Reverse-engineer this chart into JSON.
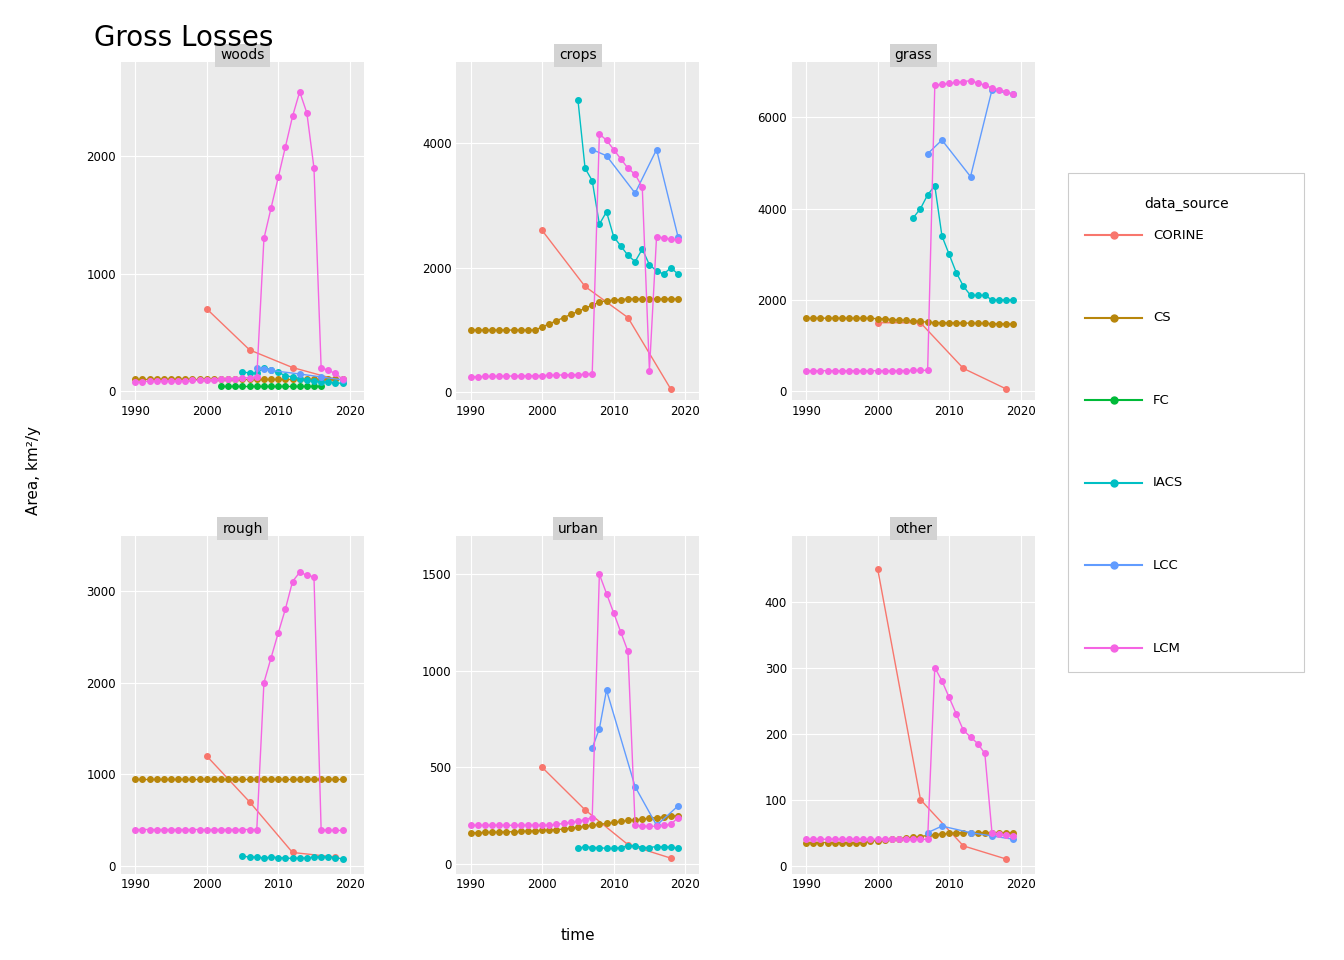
{
  "title": "Gross Losses",
  "xlabel": "time",
  "ylabel": "Area, km²/y",
  "panels": [
    "woods",
    "crops",
    "grass",
    "rough",
    "urban",
    "other"
  ],
  "sources": [
    "CORINE",
    "CS",
    "FC",
    "IACS",
    "LCC",
    "LCM"
  ],
  "colors": {
    "CORINE": "#F8766D",
    "CS": "#B8860B",
    "FC": "#00BA38",
    "IACS": "#00BFC4",
    "LCC": "#619CFF",
    "LCM": "#F564E3"
  },
  "data": {
    "woods": {
      "CORINE": {
        "x": [
          2000,
          2006,
          2012,
          2018
        ],
        "y": [
          700,
          350,
          200,
          100
        ]
      },
      "CS": {
        "x": [
          1990,
          1991,
          1992,
          1993,
          1994,
          1995,
          1996,
          1997,
          1998,
          1999,
          2000,
          2001,
          2002,
          2003,
          2004,
          2005,
          2006,
          2007,
          2008,
          2009,
          2010,
          2011,
          2012,
          2013,
          2014,
          2015,
          2016,
          2017,
          2018,
          2019
        ],
        "y": [
          100,
          100,
          100,
          100,
          100,
          100,
          100,
          100,
          100,
          100,
          100,
          100,
          100,
          100,
          100,
          100,
          100,
          100,
          100,
          100,
          100,
          100,
          100,
          100,
          100,
          100,
          100,
          100,
          100,
          100
        ]
      },
      "FC": {
        "x": [
          2002,
          2003,
          2004,
          2005,
          2006,
          2007,
          2008,
          2009,
          2010,
          2011,
          2012,
          2013,
          2014,
          2015,
          2016
        ],
        "y": [
          40,
          40,
          40,
          40,
          40,
          40,
          40,
          40,
          40,
          40,
          40,
          40,
          40,
          40,
          40
        ]
      },
      "IACS": {
        "x": [
          2005,
          2006,
          2007,
          2008,
          2009,
          2010,
          2011,
          2012,
          2013,
          2014,
          2015,
          2016,
          2017,
          2018,
          2019
        ],
        "y": [
          160,
          155,
          150,
          200,
          180,
          160,
          130,
          120,
          105,
          95,
          85,
          80,
          75,
          70,
          65
        ]
      },
      "LCC": {
        "x": [
          2007,
          2008,
          2009,
          2013,
          2016,
          2019
        ],
        "y": [
          200,
          190,
          175,
          145,
          120,
          95
        ]
      },
      "LCM": {
        "x": [
          1990,
          1991,
          1992,
          1993,
          1994,
          1995,
          1996,
          1997,
          1998,
          1999,
          2000,
          2001,
          2002,
          2003,
          2004,
          2005,
          2006,
          2007,
          2008,
          2009,
          2010,
          2011,
          2012,
          2013,
          2014,
          2015,
          2016,
          2017,
          2018,
          2019
        ],
        "y": [
          80,
          81,
          82,
          83,
          84,
          85,
          86,
          87,
          90,
          92,
          95,
          98,
          100,
          103,
          106,
          110,
          115,
          120,
          1300,
          1560,
          1820,
          2080,
          2340,
          2550,
          2370,
          1900,
          200,
          175,
          150,
          100
        ]
      }
    },
    "crops": {
      "CORINE": {
        "x": [
          2000,
          2006,
          2012,
          2018
        ],
        "y": [
          2600,
          1700,
          1200,
          50
        ]
      },
      "CS": {
        "x": [
          1990,
          1991,
          1992,
          1993,
          1994,
          1995,
          1996,
          1997,
          1998,
          1999,
          2000,
          2001,
          2002,
          2003,
          2004,
          2005,
          2006,
          2007,
          2008,
          2009,
          2010,
          2011,
          2012,
          2013,
          2014,
          2015,
          2016,
          2017,
          2018,
          2019
        ],
        "y": [
          1000,
          1000,
          1000,
          1000,
          1000,
          1000,
          1000,
          1000,
          1000,
          1000,
          1050,
          1100,
          1150,
          1200,
          1250,
          1300,
          1350,
          1400,
          1450,
          1470,
          1480,
          1490,
          1500,
          1500,
          1500,
          1500,
          1500,
          1500,
          1500,
          1500
        ]
      },
      "FC": {
        "x": [],
        "y": []
      },
      "IACS": {
        "x": [
          2005,
          2006,
          2007,
          2008,
          2009,
          2010,
          2011,
          2012,
          2013,
          2014,
          2015,
          2016,
          2017,
          2018,
          2019
        ],
        "y": [
          4700,
          3600,
          3400,
          2700,
          2900,
          2500,
          2350,
          2200,
          2100,
          2300,
          2050,
          1950,
          1900,
          2000,
          1900
        ]
      },
      "LCC": {
        "x": [
          2007,
          2009,
          2013,
          2016,
          2019
        ],
        "y": [
          3900,
          3800,
          3200,
          3900,
          2500
        ]
      },
      "LCM": {
        "x": [
          1990,
          1991,
          1992,
          1993,
          1994,
          1995,
          1996,
          1997,
          1998,
          1999,
          2000,
          2001,
          2002,
          2003,
          2004,
          2005,
          2006,
          2007,
          2008,
          2009,
          2010,
          2011,
          2012,
          2013,
          2014,
          2015,
          2016,
          2017,
          2018,
          2019
        ],
        "y": [
          250,
          252,
          254,
          256,
          258,
          260,
          262,
          264,
          266,
          268,
          270,
          273,
          276,
          279,
          282,
          285,
          290,
          295,
          4150,
          4050,
          3900,
          3750,
          3600,
          3500,
          3300,
          350,
          2500,
          2480,
          2460,
          2450
        ]
      }
    },
    "grass": {
      "CORINE": {
        "x": [
          2000,
          2006,
          2012,
          2018
        ],
        "y": [
          1500,
          1500,
          500,
          50
        ]
      },
      "CS": {
        "x": [
          1990,
          1991,
          1992,
          1993,
          1994,
          1995,
          1996,
          1997,
          1998,
          1999,
          2000,
          2001,
          2002,
          2003,
          2004,
          2005,
          2006,
          2007,
          2008,
          2009,
          2010,
          2011,
          2012,
          2013,
          2014,
          2015,
          2016,
          2017,
          2018,
          2019
        ],
        "y": [
          1600,
          1600,
          1600,
          1600,
          1600,
          1600,
          1600,
          1600,
          1600,
          1595,
          1590,
          1585,
          1570,
          1560,
          1550,
          1540,
          1530,
          1510,
          1505,
          1502,
          1500,
          1498,
          1495,
          1490,
          1488,
          1485,
          1482,
          1478,
          1475,
          1470
        ]
      },
      "FC": {
        "x": [],
        "y": []
      },
      "IACS": {
        "x": [
          2005,
          2006,
          2007,
          2008,
          2009,
          2010,
          2011,
          2012,
          2013,
          2014,
          2015,
          2016,
          2017,
          2018,
          2019
        ],
        "y": [
          3800,
          4000,
          4300,
          4500,
          3400,
          3000,
          2600,
          2300,
          2100,
          2100,
          2100,
          2000,
          2000,
          2000,
          2000
        ]
      },
      "LCC": {
        "x": [
          2007,
          2009,
          2013,
          2016,
          2019
        ],
        "y": [
          5200,
          5500,
          4700,
          6600,
          6500
        ]
      },
      "LCM": {
        "x": [
          1990,
          1991,
          1992,
          1993,
          1994,
          1995,
          1996,
          1997,
          1998,
          1999,
          2000,
          2001,
          2002,
          2003,
          2004,
          2005,
          2006,
          2007,
          2008,
          2009,
          2010,
          2011,
          2012,
          2013,
          2014,
          2015,
          2016,
          2017,
          2018,
          2019
        ],
        "y": [
          450,
          450,
          450,
          450,
          450,
          450,
          450,
          450,
          450,
          450,
          450,
          451,
          452,
          453,
          454,
          455,
          456,
          460,
          6700,
          6720,
          6740,
          6760,
          6780,
          6800,
          6750,
          6700,
          6640,
          6600,
          6560,
          6500
        ]
      }
    },
    "rough": {
      "CORINE": {
        "x": [
          2000,
          2006,
          2012,
          2018
        ],
        "y": [
          1200,
          700,
          150,
          100
        ]
      },
      "CS": {
        "x": [
          1990,
          1991,
          1992,
          1993,
          1994,
          1995,
          1996,
          1997,
          1998,
          1999,
          2000,
          2001,
          2002,
          2003,
          2004,
          2005,
          2006,
          2007,
          2008,
          2009,
          2010,
          2011,
          2012,
          2013,
          2014,
          2015,
          2016,
          2017,
          2018,
          2019
        ],
        "y": [
          950,
          950,
          950,
          950,
          950,
          950,
          950,
          950,
          950,
          950,
          950,
          950,
          950,
          950,
          950,
          950,
          950,
          950,
          950,
          950,
          950,
          950,
          950,
          950,
          950,
          950,
          950,
          950,
          950,
          950
        ]
      },
      "FC": {
        "x": [],
        "y": []
      },
      "IACS": {
        "x": [
          2005,
          2006,
          2007,
          2008,
          2009,
          2010,
          2011,
          2012,
          2013,
          2014,
          2015,
          2016,
          2017,
          2018,
          2019
        ],
        "y": [
          110,
          100,
          100,
          90,
          100,
          95,
          90,
          85,
          90,
          90,
          100,
          105,
          100,
          95,
          80
        ]
      },
      "LCC": {
        "x": [],
        "y": []
      },
      "LCM": {
        "x": [
          1990,
          1991,
          1992,
          1993,
          1994,
          1995,
          1996,
          1997,
          1998,
          1999,
          2000,
          2001,
          2002,
          2003,
          2004,
          2005,
          2006,
          2007,
          2008,
          2009,
          2010,
          2011,
          2012,
          2013,
          2014,
          2015,
          2016,
          2017,
          2018,
          2019
        ],
        "y": [
          400,
          400,
          400,
          400,
          400,
          400,
          400,
          400,
          400,
          400,
          400,
          400,
          400,
          400,
          400,
          400,
          400,
          400,
          2000,
          2270,
          2540,
          2800,
          3100,
          3200,
          3170,
          3150,
          400,
          390,
          390,
          390
        ]
      }
    },
    "urban": {
      "CORINE": {
        "x": [
          2000,
          2006,
          2012,
          2018
        ],
        "y": [
          500,
          280,
          100,
          30
        ]
      },
      "CS": {
        "x": [
          1990,
          1991,
          1992,
          1993,
          1994,
          1995,
          1996,
          1997,
          1998,
          1999,
          2000,
          2001,
          2002,
          2003,
          2004,
          2005,
          2006,
          2007,
          2008,
          2009,
          2010,
          2011,
          2012,
          2013,
          2014,
          2015,
          2016,
          2017,
          2018,
          2019
        ],
        "y": [
          160,
          162,
          163,
          164,
          165,
          166,
          167,
          168,
          170,
          172,
          174,
          176,
          178,
          180,
          185,
          190,
          195,
          200,
          205,
          210,
          215,
          220,
          225,
          228,
          232,
          237,
          240,
          243,
          247,
          250
        ]
      },
      "FC": {
        "x": [],
        "y": []
      },
      "IACS": {
        "x": [
          2005,
          2006,
          2007,
          2008,
          2009,
          2010,
          2011,
          2012,
          2013,
          2014,
          2015,
          2016,
          2017,
          2018,
          2019
        ],
        "y": [
          80,
          90,
          85,
          85,
          80,
          80,
          85,
          95,
          95,
          85,
          85,
          90,
          88,
          88,
          80
        ]
      },
      "LCC": {
        "x": [
          2007,
          2008,
          2009,
          2013,
          2016,
          2019
        ],
        "y": [
          600,
          700,
          900,
          400,
          200,
          300
        ]
      },
      "LCM": {
        "x": [
          1990,
          1991,
          1992,
          1993,
          1994,
          1995,
          1996,
          1997,
          1998,
          1999,
          2000,
          2001,
          2002,
          2003,
          2004,
          2005,
          2006,
          2007,
          2008,
          2009,
          2010,
          2011,
          2012,
          2013,
          2014,
          2015,
          2016,
          2017,
          2018,
          2019
        ],
        "y": [
          200,
          200,
          200,
          200,
          200,
          200,
          200,
          200,
          200,
          200,
          200,
          200,
          205,
          210,
          215,
          220,
          230,
          240,
          1500,
          1400,
          1300,
          1200,
          1100,
          200,
          195,
          195,
          195,
          200,
          205,
          240
        ]
      }
    },
    "other": {
      "CORINE": {
        "x": [
          2000,
          2006,
          2012,
          2018
        ],
        "y": [
          450,
          100,
          30,
          10
        ]
      },
      "CS": {
        "x": [
          1990,
          1991,
          1992,
          1993,
          1994,
          1995,
          1996,
          1997,
          1998,
          1999,
          2000,
          2001,
          2002,
          2003,
          2004,
          2005,
          2006,
          2007,
          2008,
          2009,
          2010,
          2011,
          2012,
          2013,
          2014,
          2015,
          2016,
          2017,
          2018,
          2019
        ],
        "y": [
          35,
          35,
          35,
          35,
          35,
          35,
          35,
          35,
          35,
          37,
          38,
          39,
          40,
          41,
          42,
          43,
          44,
          46,
          47,
          48,
          49,
          50,
          50,
          50,
          50,
          50,
          50,
          50,
          50,
          50
        ]
      },
      "FC": {
        "x": [],
        "y": []
      },
      "IACS": {
        "x": [],
        "y": []
      },
      "LCC": {
        "x": [
          2007,
          2009,
          2013,
          2016,
          2019
        ],
        "y": [
          50,
          60,
          50,
          45,
          40
        ]
      },
      "LCM": {
        "x": [
          1990,
          1991,
          1992,
          1993,
          1994,
          1995,
          1996,
          1997,
          1998,
          1999,
          2000,
          2001,
          2002,
          2003,
          2004,
          2005,
          2006,
          2007,
          2008,
          2009,
          2010,
          2011,
          2012,
          2013,
          2014,
          2015,
          2016,
          2017,
          2018,
          2019
        ],
        "y": [
          40,
          40,
          40,
          40,
          40,
          40,
          40,
          40,
          40,
          40,
          40,
          40,
          40,
          40,
          40,
          40,
          40,
          40,
          300,
          280,
          255,
          230,
          205,
          195,
          185,
          170,
          50,
          48,
          46,
          45
        ]
      }
    }
  },
  "ylims": {
    "woods": [
      -80,
      2800
    ],
    "crops": [
      -130,
      5300
    ],
    "grass": [
      -200,
      7200
    ],
    "rough": [
      -80,
      3600
    ],
    "urban": [
      -50,
      1700
    ],
    "other": [
      -12,
      500
    ]
  },
  "yticks": {
    "woods": [
      0,
      1000,
      2000
    ],
    "crops": [
      0,
      2000,
      4000
    ],
    "grass": [
      0,
      2000,
      4000,
      6000
    ],
    "rough": [
      0,
      1000,
      2000,
      3000
    ],
    "urban": [
      0,
      500,
      1000,
      1500
    ],
    "other": [
      0,
      100,
      200,
      300,
      400
    ]
  },
  "panel_bg": "#EBEBEB",
  "grid_color": "white",
  "title_bg": "#D3D3D3"
}
